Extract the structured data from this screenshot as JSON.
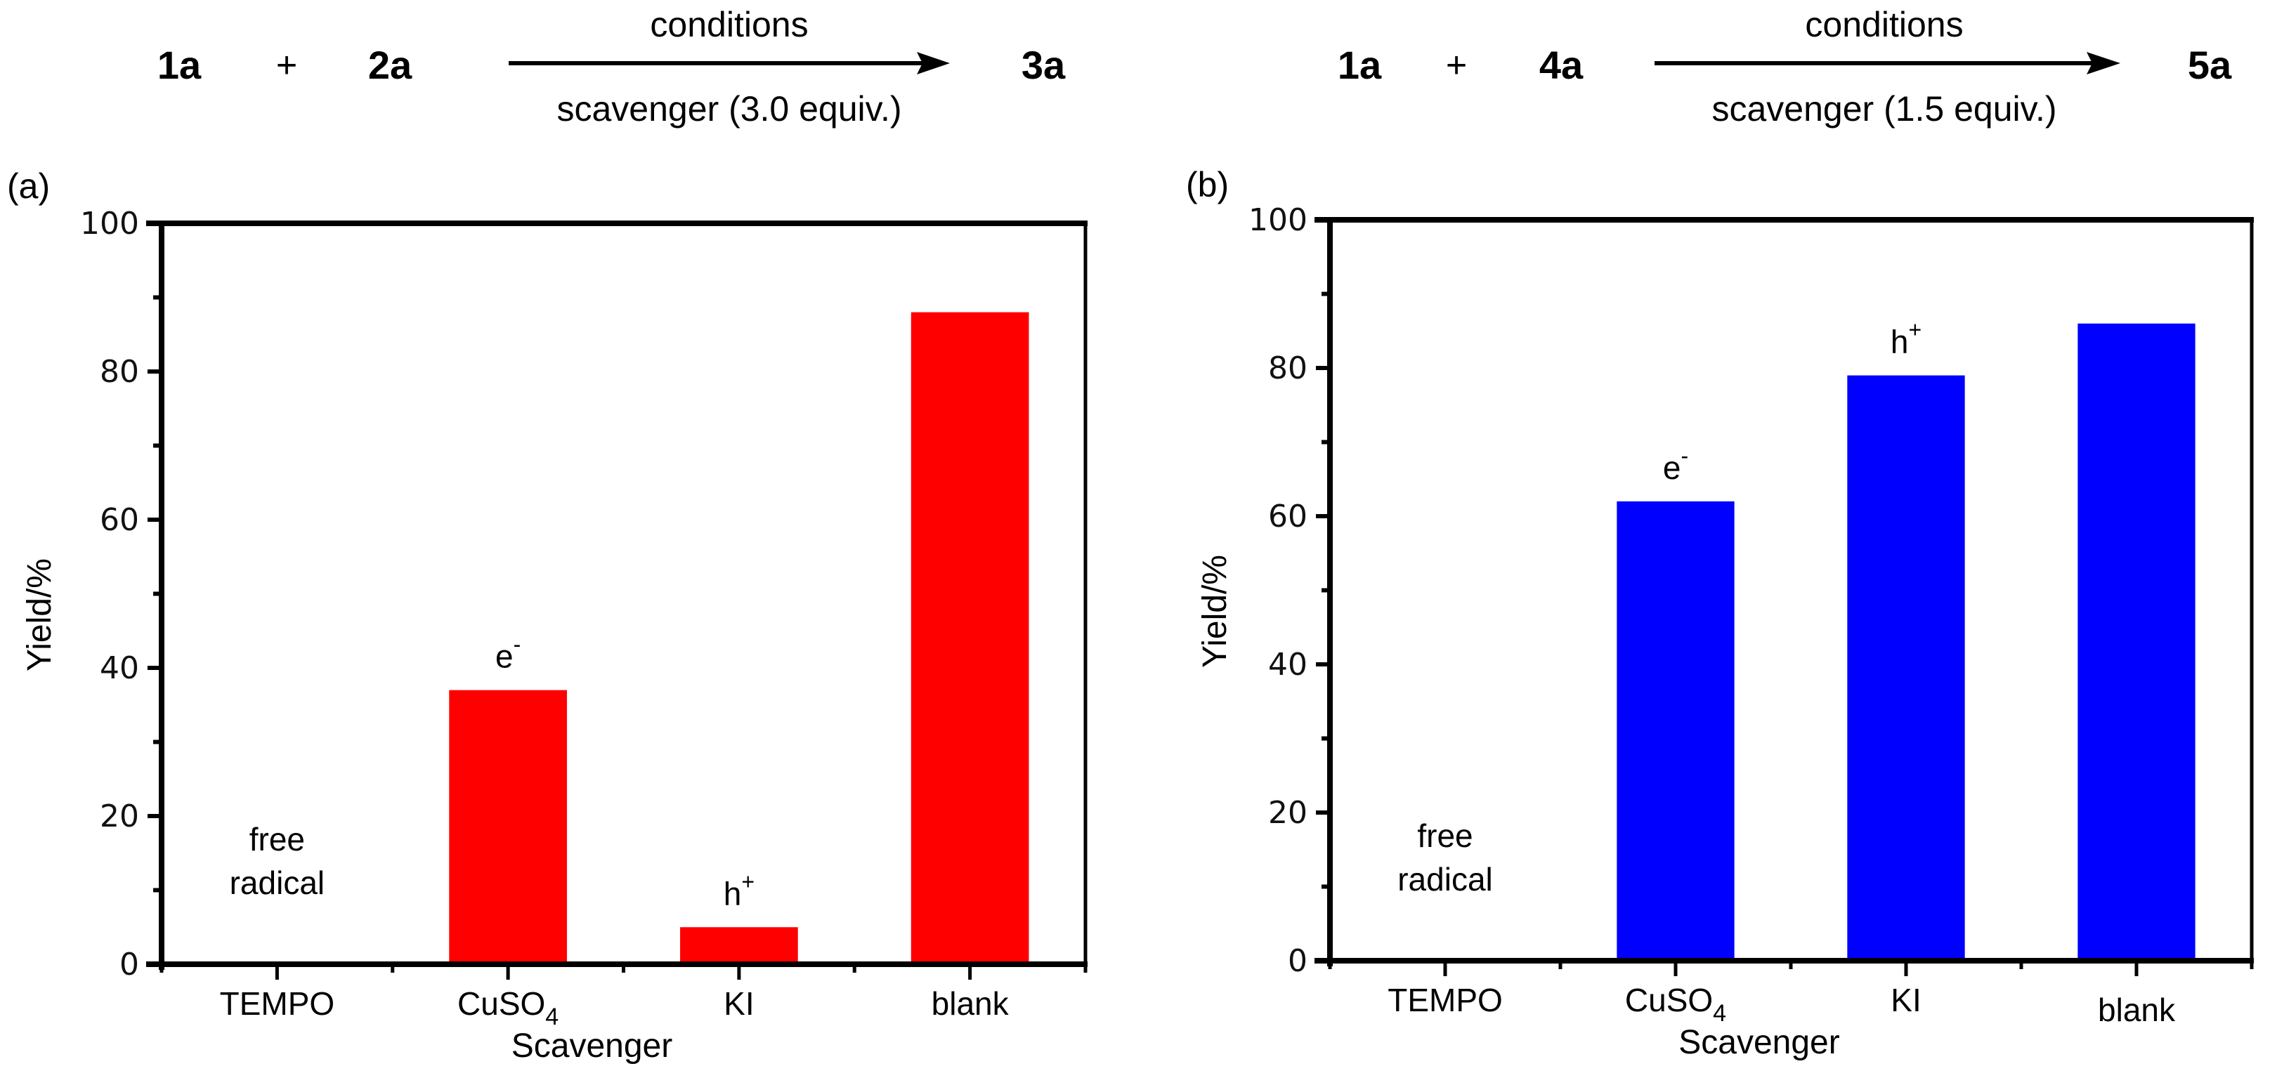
{
  "scheme_a": {
    "reactant1": "1a",
    "plus": "+",
    "reactant2": "2a",
    "above_arrow": "conditions",
    "below_arrow": "scavenger (3.0 equiv.)",
    "product": "3a"
  },
  "scheme_b": {
    "reactant1": "1a",
    "plus": "+",
    "reactant2": "4a",
    "above_arrow": "conditions",
    "below_arrow": "scavenger (1.5 equiv.)",
    "product": "5a"
  },
  "chart_data": [
    {
      "type": "bar",
      "panel_label": "(a)",
      "categories": [
        "TEMPO",
        "CuSO4",
        "KI",
        "blank"
      ],
      "category_labels": [
        {
          "main": "TEMPO",
          "sub": ""
        },
        {
          "main": "CuSO",
          "sub": "4"
        },
        {
          "main": "KI",
          "sub": ""
        },
        {
          "main": "blank",
          "sub": ""
        }
      ],
      "values": [
        0,
        37,
        5,
        88
      ],
      "annotations": [
        {
          "lines": [
            "free",
            "radical"
          ],
          "sup": ""
        },
        {
          "lines": [
            "e"
          ],
          "sup": "-"
        },
        {
          "lines": [
            "h"
          ],
          "sup": "+"
        },
        {
          "lines": [],
          "sup": ""
        }
      ],
      "xlabel": "Scavenger",
      "ylabel": "Yield/%",
      "ylim": [
        0,
        100
      ],
      "yticks": [
        "0",
        "20",
        "40",
        "60",
        "80",
        "100"
      ],
      "grid": false,
      "color": "#ff0000"
    },
    {
      "type": "bar",
      "panel_label": "(b)",
      "categories": [
        "TEMPO",
        "CuSO4",
        "KI",
        "blank"
      ],
      "category_labels": [
        {
          "main": "TEMPO",
          "sub": ""
        },
        {
          "main": "CuSO",
          "sub": "4"
        },
        {
          "main": "KI",
          "sub": ""
        },
        {
          "main": "blank",
          "sub": ""
        }
      ],
      "values": [
        0,
        62,
        79,
        86
      ],
      "annotations": [
        {
          "lines": [
            "free",
            "radical"
          ],
          "sup": ""
        },
        {
          "lines": [
            "e"
          ],
          "sup": "-"
        },
        {
          "lines": [
            "h"
          ],
          "sup": "+"
        },
        {
          "lines": [],
          "sup": ""
        }
      ],
      "xlabel": "Scavenger",
      "ylabel": "Yield/%",
      "ylim": [
        0,
        100
      ],
      "yticks": [
        "0",
        "20",
        "40",
        "60",
        "80",
        "100"
      ],
      "grid": false,
      "color": "#0000ff"
    }
  ]
}
